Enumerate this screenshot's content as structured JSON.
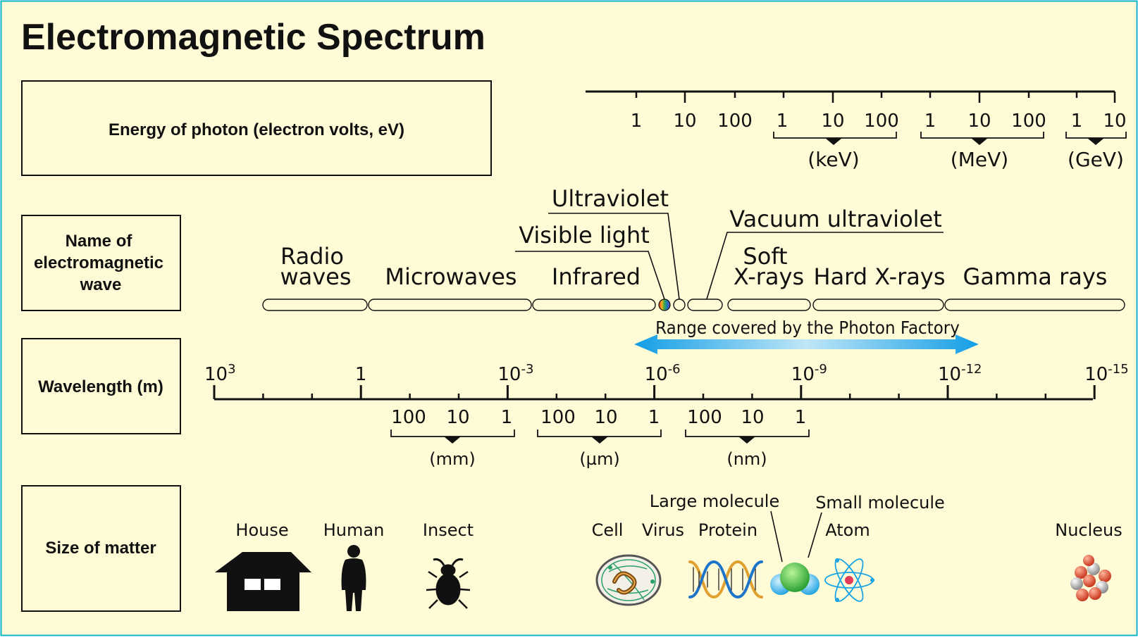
{
  "title": "Electromagnetic Spectrum",
  "colors": {
    "background": "#fffbd6",
    "frame": "#12b5cf",
    "ink": "#111111",
    "arrow": "#19a4e6"
  },
  "row_labels": {
    "energy": "Energy of photon (electron volts, eV)",
    "name_line1": "Name of",
    "name_line2": "electromagnetic",
    "name_line3": "wave",
    "wavelength": "Wavelength (m)",
    "size": "Size of matter"
  },
  "energy_scale": {
    "ticks": [
      "1",
      "10",
      "100",
      "1",
      "10",
      "100",
      "1",
      "10",
      "100",
      "1",
      "10"
    ],
    "units": [
      "(keV)",
      "(MeV)",
      "(GeV)"
    ]
  },
  "wave_names": {
    "radio_1": "Radio",
    "radio_2": "waves",
    "microwaves": "Microwaves",
    "infrared": "Infrared",
    "visible": "Visible light",
    "ultraviolet": "Ultraviolet",
    "vacuum_uv": "Vacuum ultraviolet",
    "soft_1": "Soft",
    "soft_2": "X-rays",
    "hard_xrays": "Hard X-rays",
    "gamma": "Gamma rays"
  },
  "photon_factory": "Range covered by the Photon Factory",
  "wavelength_scale": {
    "major_mantissa": [
      "10",
      "1",
      "10",
      "10",
      "10",
      "10",
      "10"
    ],
    "major_exponent": [
      "3",
      "",
      "-3",
      "-6",
      "-9",
      "-12",
      "-15"
    ],
    "sub_ticks": [
      "100",
      "10",
      "1",
      "100",
      "10",
      "1",
      "100",
      "10",
      "1"
    ],
    "units": [
      "(mm)",
      "(µm)",
      "(nm)"
    ]
  },
  "matter": {
    "house": "House",
    "human": "Human",
    "insect": "Insect",
    "cell": "Cell",
    "virus": "Virus",
    "protein": "Protein",
    "large_molecule": "Large molecule",
    "small_molecule": "Small molecule",
    "atom": "Atom",
    "nucleus": "Nucleus"
  },
  "icons": [
    "house-icon",
    "human-icon",
    "insect-icon",
    "cell-icon",
    "dna-protein-icon",
    "molecule-icon",
    "atom-icon",
    "nucleus-icon"
  ]
}
